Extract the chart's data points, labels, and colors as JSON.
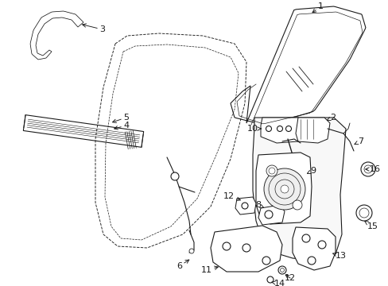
{
  "bg": "#ffffff",
  "lc": "#1a1a1a",
  "lw": 0.8,
  "figsize": [
    4.89,
    3.6
  ],
  "dpi": 100
}
